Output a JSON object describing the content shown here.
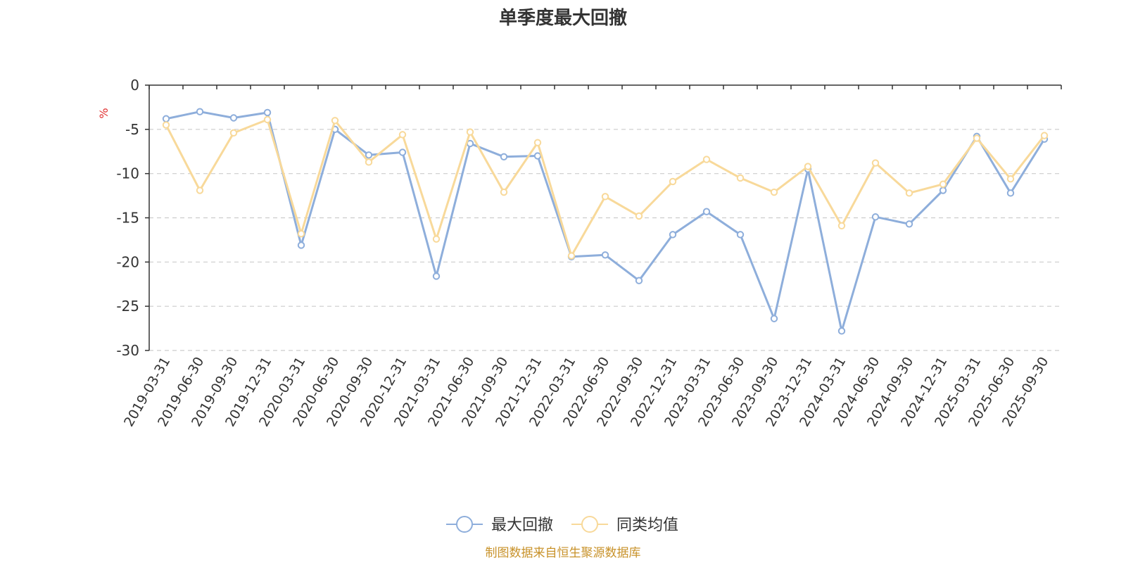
{
  "chart_data": {
    "type": "line",
    "title": "单季度最大回撤",
    "ylabel": "%",
    "xlabel": "",
    "ylim": [
      -30,
      0
    ],
    "yticks": [
      0,
      -5,
      -10,
      -15,
      -20,
      -25,
      -30
    ],
    "grid": "horizontal-dashed",
    "legend_position": "bottom-center",
    "categories": [
      "2019-03-31",
      "2019-06-30",
      "2019-09-30",
      "2019-12-31",
      "2020-03-31",
      "2020-06-30",
      "2020-09-30",
      "2020-12-31",
      "2021-03-31",
      "2021-06-30",
      "2021-09-30",
      "2021-12-31",
      "2022-03-31",
      "2022-06-30",
      "2022-09-30",
      "2022-12-31",
      "2023-03-31",
      "2023-06-30",
      "2023-09-30",
      "2023-12-31",
      "2024-03-31",
      "2024-06-30",
      "2024-09-30",
      "2024-12-31",
      "2025-03-31",
      "2025-06-30",
      "2025-09-30"
    ],
    "series": [
      {
        "name": "最大回撤",
        "color": "#8eaedb",
        "values": [
          -3.8,
          -3.0,
          -3.7,
          -3.1,
          -18.1,
          -5.0,
          -7.9,
          -7.6,
          -21.6,
          -6.6,
          -8.1,
          -8.0,
          -19.4,
          -19.2,
          -22.1,
          -16.9,
          -14.3,
          -16.9,
          -26.4,
          -9.5,
          -27.8,
          -14.9,
          -15.7,
          -11.9,
          -5.8,
          -12.2,
          -6.1
        ]
      },
      {
        "name": "同类均值",
        "color": "#f8d99a",
        "values": [
          -4.5,
          -11.9,
          -5.4,
          -3.9,
          -16.8,
          -4.0,
          -8.7,
          -5.6,
          -17.4,
          -5.3,
          -12.1,
          -6.5,
          -19.3,
          -12.6,
          -14.8,
          -10.9,
          -8.4,
          -10.5,
          -12.1,
          -9.2,
          -15.9,
          -8.8,
          -12.2,
          -11.2,
          -6.0,
          -10.6,
          -5.7
        ]
      }
    ]
  },
  "legend": {
    "items": [
      "最大回撤",
      "同类均值"
    ]
  },
  "footer": {
    "source": "制图数据来自恒生聚源数据库"
  }
}
